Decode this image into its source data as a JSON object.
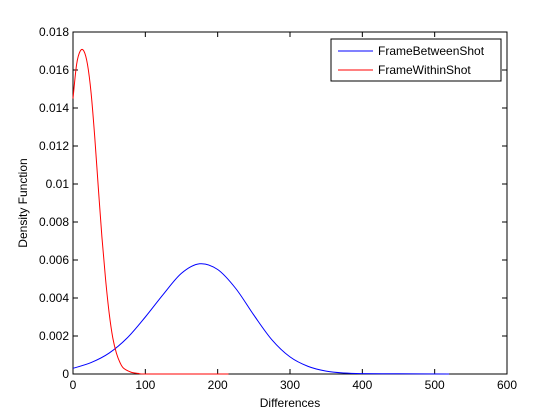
{
  "chart_data": {
    "type": "line",
    "title": "",
    "xlabel": "Differences",
    "ylabel": "Density Function",
    "xlim": [
      0,
      600
    ],
    "ylim": [
      0,
      0.018
    ],
    "xticks": [
      0,
      100,
      200,
      300,
      400,
      500,
      600
    ],
    "xtick_labels": [
      "0",
      "100",
      "200",
      "300",
      "400",
      "500",
      "600"
    ],
    "yticks": [
      0,
      0.002,
      0.004,
      0.006,
      0.008,
      0.01,
      0.012,
      0.014,
      0.016,
      0.018
    ],
    "ytick_labels": [
      "0",
      "0.002",
      "0.004",
      "0.006",
      "0.008",
      "0.01",
      "0.012",
      "0.014",
      "0.016",
      "0.018"
    ],
    "grid": false,
    "legend_position": "top-right",
    "series": [
      {
        "name": "FrameBetweenShot",
        "color": "#0000ff",
        "x": [
          0,
          25,
          50,
          75,
          100,
          125,
          150,
          175,
          200,
          225,
          250,
          275,
          300,
          325,
          350,
          375,
          400,
          450,
          520
        ],
        "y": [
          0.0003,
          0.0006,
          0.0011,
          0.0019,
          0.003,
          0.0042,
          0.0053,
          0.0058,
          0.0055,
          0.0045,
          0.0031,
          0.0018,
          0.0009,
          0.0004,
          0.00015,
          5e-05,
          2e-05,
          1e-05,
          0.0
        ]
      },
      {
        "name": "FrameWithinShot",
        "color": "#ff0000",
        "x": [
          0,
          5,
          10,
          15,
          20,
          25,
          30,
          35,
          40,
          45,
          50,
          55,
          60,
          65,
          70,
          80,
          90,
          100,
          150,
          215
        ],
        "y": [
          0.0145,
          0.0163,
          0.017,
          0.017,
          0.0163,
          0.0148,
          0.0125,
          0.0098,
          0.0072,
          0.005,
          0.0032,
          0.0019,
          0.0011,
          0.0006,
          0.0003,
          0.0001,
          3e-05,
          0.0,
          0.0,
          0.0
        ]
      }
    ]
  }
}
